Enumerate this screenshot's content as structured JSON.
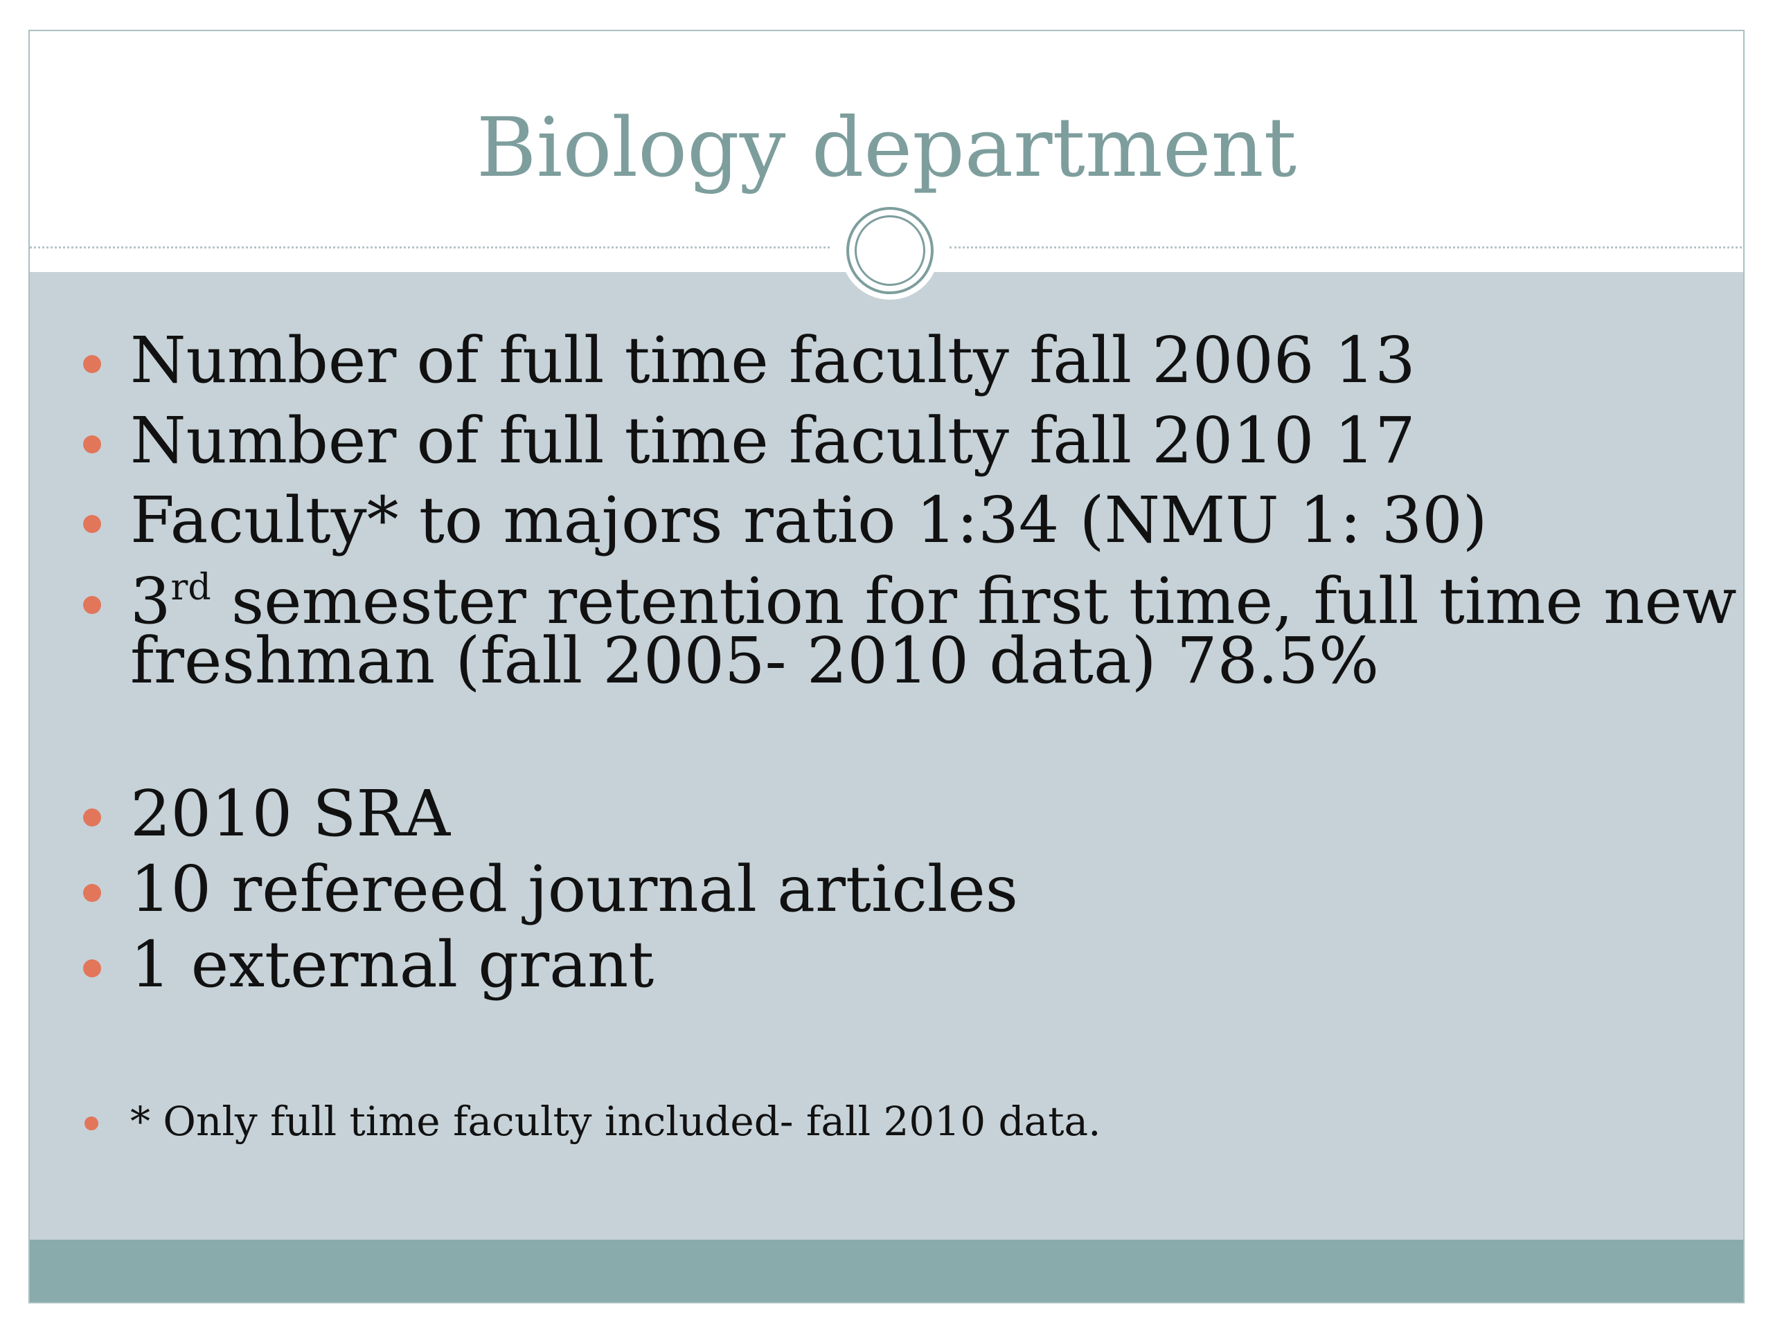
{
  "slide": {
    "title": "Biology department",
    "accent_color": "#e2765a",
    "title_color": "#7d9e9d",
    "content_bg": "#c6d2d8",
    "footer_bg": "#8aabab",
    "bullets": [
      {
        "text": "Number of full time faculty fall 2006 13"
      },
      {
        "text": "Number of full time faculty fall 2010 17"
      },
      {
        "text": "Faculty* to majors ratio 1:34 (NMU 1: 30)"
      },
      {
        "prefix": "3",
        "superscript": "rd",
        "text_line1": " semester retention for first time, full time new",
        "text_line2": "freshman (fall 2005- 2010 data) 78.5%"
      },
      {
        "text": "2010 SRA"
      },
      {
        "text": "10 refereed journal articles"
      },
      {
        "text": "1 external grant"
      }
    ],
    "footnote": "* Only full time faculty included- fall 2010 data."
  }
}
